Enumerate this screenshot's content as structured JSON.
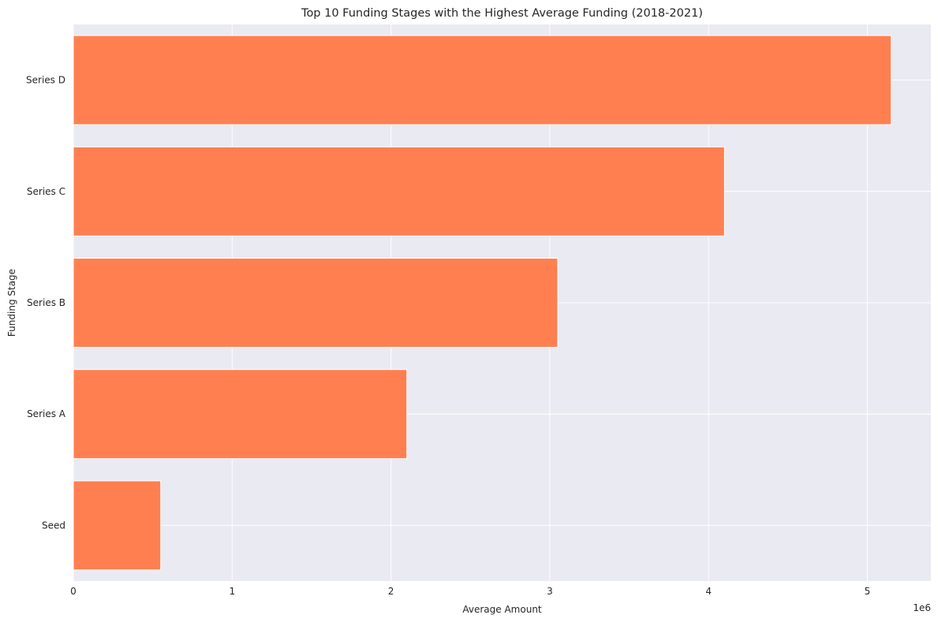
{
  "chart_data": {
    "type": "bar",
    "orientation": "horizontal",
    "title": "Top 10 Funding Stages with the Highest Average Funding (2018-2021)",
    "xlabel": "Average Amount",
    "ylabel": "Funding Stage",
    "categories": [
      "Seed",
      "Series A",
      "Series B",
      "Series C",
      "Series D"
    ],
    "values": [
      550000,
      2100000,
      3050000,
      4100000,
      5150000
    ],
    "xlim": [
      0,
      5400000
    ],
    "x_ticks": [
      0,
      1000000,
      2000000,
      3000000,
      4000000,
      5000000
    ],
    "x_tick_labels": [
      "0",
      "1",
      "2",
      "3",
      "4",
      "5"
    ],
    "x_offset_label": "1e6",
    "grid": true,
    "colors": {
      "bar": "#FF7F50",
      "plot_background": "#EAEAF2",
      "grid": "#FFFFFF"
    }
  }
}
